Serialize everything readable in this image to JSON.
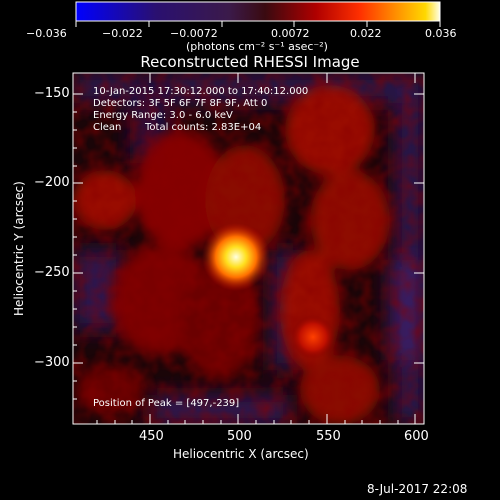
{
  "colorbar": {
    "ticks": [
      "−0.036",
      "−0.022",
      "−0.0072",
      "0.0072",
      "0.022",
      "0.036"
    ],
    "unit_label": "(photons cm⁻² s⁻¹ asec⁻²)"
  },
  "title": "Reconstructed RHESSI Image",
  "info": {
    "line1": "10-Jan-2015 17:30:12.000 to 17:40:12.000",
    "line2": "Detectors: 3F 5F 6F 7F 8F 9F, Att 0",
    "line3": "Energy Range: 3.0 - 6.0 keV",
    "line4_a": "Clean",
    "line4_b": "Total counts: 2.83E+04",
    "peak": "Position of Peak = [497,-239]"
  },
  "axes": {
    "xlabel": "Heliocentric X (arcsec)",
    "ylabel": "Heliocentric Y (arcsec)",
    "xticks": [
      "450",
      "500",
      "550",
      "600"
    ],
    "yticks": [
      "−150",
      "−200",
      "−250",
      "−300"
    ]
  },
  "footer": {
    "date": "8-Jul-2017 22:08"
  },
  "colors": {
    "negative": "#0000ff",
    "zero": "#000000",
    "positive_hot": "#ff3000",
    "peak": "#ffffe0"
  }
}
